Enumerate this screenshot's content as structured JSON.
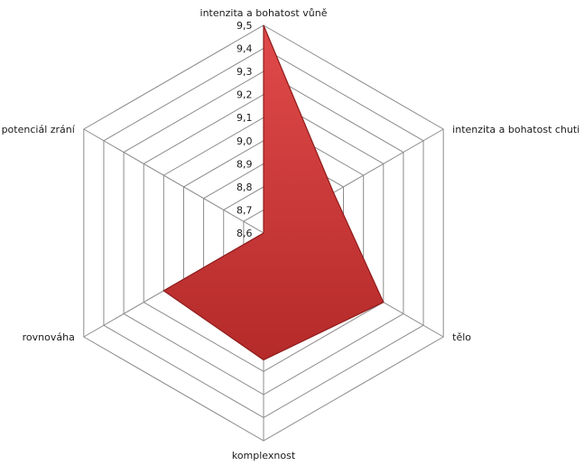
{
  "chart_data": {
    "type": "radar",
    "title": "",
    "categories": [
      "intenzita a bohatost vůně",
      "intenzita a bohatost chuti",
      "tělo",
      "komplexnost",
      "rovnováha",
      "potenciál zrání"
    ],
    "series": [
      {
        "values": [
          9.5,
          8.95,
          9.2,
          9.15,
          9.1,
          8.6
        ]
      }
    ],
    "rlim": [
      8.6,
      9.5
    ],
    "ticks": [
      "8,6",
      "8,7",
      "8,8",
      "8,9",
      "9,0",
      "9,1",
      "9,2",
      "9,3",
      "9,4",
      "9,5"
    ],
    "grid": true,
    "legend": "none",
    "colors": {
      "fill_top": "#e04a4a",
      "fill_bottom": "#b52a2a",
      "stroke": "#8e1b1b",
      "grid": "#8c8c8c"
    }
  }
}
